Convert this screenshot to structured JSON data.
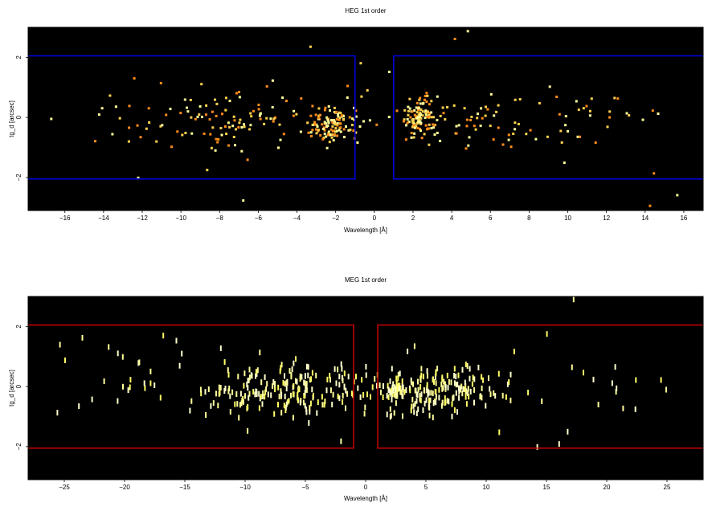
{
  "chart_data": [
    {
      "type": "heatmap",
      "title": "HEG 1st order",
      "xlabel": "Wavelength [Å]",
      "ylabel": "tg_d [arcsec]",
      "xlim": [
        -17.9,
        17.0
      ],
      "ylim": [
        -3.1,
        3.0
      ],
      "xticks": [
        -16,
        -14,
        -12,
        -10,
        -8,
        -6,
        -4,
        -2,
        0,
        2,
        4,
        6,
        8,
        10,
        12,
        14,
        16
      ],
      "yticks": [
        -2,
        0,
        2
      ],
      "xtick_labels": [
        "−16",
        "−14",
        "−12",
        "−10",
        "−8",
        "−6",
        "−4",
        "−2",
        "0",
        "2",
        "4",
        "6",
        "8",
        "10",
        "12",
        "14",
        "16"
      ],
      "ytick_labels": [
        "−2",
        "0",
        "2"
      ],
      "background": "#000000",
      "point_colors": [
        "#ff8c1a",
        "#ffd24d",
        "#ffff99"
      ],
      "regions": [
        {
          "color": "#0000e6",
          "x": [
            -18.0,
            -1.0
          ],
          "y": [
            -2.05,
            2.05
          ]
        },
        {
          "color": "#0000e6",
          "x": [
            1.0,
            18.0
          ],
          "y": [
            -2.05,
            2.05
          ]
        }
      ],
      "clusters": [
        {
          "x_center": -2.2,
          "x_spread": 1.2,
          "y_center": -0.2,
          "y_spread": 0.55,
          "count": 110
        },
        {
          "x_center": -7.0,
          "x_spread": 5.0,
          "y_center": -0.1,
          "y_spread": 1.0,
          "count": 90
        },
        {
          "x_center": -12.0,
          "x_spread": 4.0,
          "y_center": 0.0,
          "y_spread": 1.4,
          "count": 20
        },
        {
          "x_center": 2.3,
          "x_spread": 0.7,
          "y_center": 0.0,
          "y_spread": 0.7,
          "count": 110
        },
        {
          "x_center": 5.0,
          "x_spread": 3.0,
          "y_center": 0.0,
          "y_spread": 1.0,
          "count": 50
        },
        {
          "x_center": 10.5,
          "x_spread": 4.0,
          "y_center": 0.0,
          "y_spread": 1.2,
          "count": 30
        },
        {
          "x_center": 0.0,
          "x_spread": 17.0,
          "y_center": 0.0,
          "y_spread": 2.6,
          "count": 45
        }
      ]
    },
    {
      "type": "heatmap",
      "title": "MEG 1st order",
      "xlabel": "Wavelength [Å]",
      "ylabel": "tg_d [arcsec]",
      "xlim": [
        -28.0,
        28.0
      ],
      "ylim": [
        -3.1,
        3.0
      ],
      "xticks": [
        -25,
        -20,
        -15,
        -10,
        -5,
        0,
        5,
        10,
        15,
        20,
        25
      ],
      "yticks": [
        -2,
        0,
        2
      ],
      "xtick_labels": [
        "−25",
        "−20",
        "−15",
        "−10",
        "−5",
        "0",
        "5",
        "10",
        "15",
        "20",
        "25"
      ],
      "ytick_labels": [
        "−2",
        "0",
        "2"
      ],
      "background": "#000000",
      "point_colors": [
        "#ffff66",
        "#ffff99",
        "#ffffcc"
      ],
      "regions": [
        {
          "color": "#cc0000",
          "x": [
            -28.5,
            -1.0
          ],
          "y": [
            -2.05,
            2.05
          ]
        },
        {
          "color": "#cc0000",
          "x": [
            1.0,
            28.5
          ],
          "y": [
            -2.05,
            2.05
          ]
        }
      ],
      "clusters": [
        {
          "x_center": -7.0,
          "x_spread": 7.0,
          "y_center": 0.0,
          "y_spread": 0.9,
          "count": 200
        },
        {
          "x_center": 6.0,
          "x_spread": 6.0,
          "y_center": 0.0,
          "y_spread": 0.9,
          "count": 180
        },
        {
          "x_center": 2.3,
          "x_spread": 0.8,
          "y_center": 0.0,
          "y_spread": 0.4,
          "count": 40
        },
        {
          "x_center": -20.0,
          "x_spread": 6.0,
          "y_center": 0.0,
          "y_spread": 1.5,
          "count": 18
        },
        {
          "x_center": 20.0,
          "x_spread": 6.0,
          "y_center": 0.0,
          "y_spread": 1.5,
          "count": 12
        },
        {
          "x_center": 0.0,
          "x_spread": 26.0,
          "y_center": 0.0,
          "y_spread": 2.7,
          "count": 40
        }
      ]
    }
  ]
}
